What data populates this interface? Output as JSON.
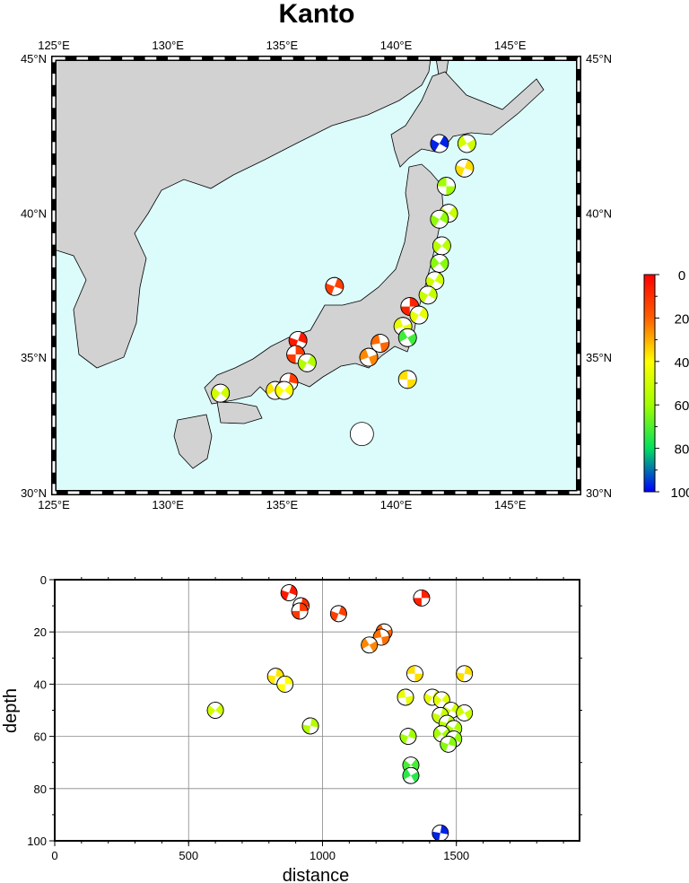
{
  "title": "Kanto",
  "map": {
    "lon_range": [
      125,
      148
    ],
    "lat_range": [
      30,
      45
    ],
    "lon_ticks": [
      {
        "value": 125,
        "label": "125°E"
      },
      {
        "value": 130,
        "label": "130°E"
      },
      {
        "value": 135,
        "label": "135°E"
      },
      {
        "value": 140,
        "label": "140°E"
      },
      {
        "value": 145,
        "label": "145°E"
      }
    ],
    "lat_ticks": [
      {
        "value": 30,
        "label": "30°N"
      },
      {
        "value": 35,
        "label": "35°N"
      },
      {
        "value": 40,
        "label": "40°N"
      },
      {
        "value": 45,
        "label": "45°N"
      }
    ],
    "ocean_color": "#dcfcfc",
    "land_color": "#d2d2d2"
  },
  "colorbar": {
    "range": [
      0,
      100
    ],
    "ticks": [
      {
        "value": 0,
        "label": "0"
      },
      {
        "value": 20,
        "label": "20"
      },
      {
        "value": 40,
        "label": "40"
      },
      {
        "value": 60,
        "label": "60"
      },
      {
        "value": 80,
        "label": "80"
      },
      {
        "value": 100,
        "label": "100"
      }
    ],
    "colors": [
      "#ff0000",
      "#ff6000",
      "#ffff00",
      "#a0ff00",
      "#00e060",
      "#0000ff"
    ]
  },
  "map_events": [
    {
      "lon": 141.9,
      "lat": 42.3,
      "depth": 97,
      "rot": 30
    },
    {
      "lon": 143.1,
      "lat": 42.3,
      "depth": 50,
      "rot": 60
    },
    {
      "lon": 143.0,
      "lat": 41.5,
      "depth": 36,
      "rot": 20
    },
    {
      "lon": 142.2,
      "lat": 40.9,
      "depth": 60,
      "rot": 90
    },
    {
      "lon": 142.3,
      "lat": 40.0,
      "depth": 52,
      "rot": 40
    },
    {
      "lon": 141.9,
      "lat": 39.8,
      "depth": 62,
      "rot": 30
    },
    {
      "lon": 142.0,
      "lat": 38.9,
      "depth": 55,
      "rot": 40
    },
    {
      "lon": 141.9,
      "lat": 38.3,
      "depth": 63,
      "rot": 50
    },
    {
      "lon": 141.7,
      "lat": 37.7,
      "depth": 50,
      "rot": 30
    },
    {
      "lon": 141.4,
      "lat": 37.2,
      "depth": 52,
      "rot": 30
    },
    {
      "lon": 140.6,
      "lat": 36.8,
      "depth": 7,
      "rot": 0
    },
    {
      "lon": 141.0,
      "lat": 36.5,
      "depth": 45,
      "rot": 30
    },
    {
      "lon": 137.3,
      "lat": 37.5,
      "depth": 13,
      "rot": 20
    },
    {
      "lon": 140.3,
      "lat": 36.1,
      "depth": 45,
      "rot": 70
    },
    {
      "lon": 140.5,
      "lat": 35.7,
      "depth": 72,
      "rot": 60
    },
    {
      "lon": 139.3,
      "lat": 35.5,
      "depth": 21,
      "rot": 80
    },
    {
      "lon": 138.8,
      "lat": 35.0,
      "depth": 25,
      "rot": 70
    },
    {
      "lon": 140.5,
      "lat": 34.2,
      "depth": 36,
      "rot": 90
    },
    {
      "lon": 135.7,
      "lat": 35.6,
      "depth": 5,
      "rot": 20
    },
    {
      "lon": 135.6,
      "lat": 35.1,
      "depth": 12,
      "rot": 0
    },
    {
      "lon": 136.1,
      "lat": 34.8,
      "depth": 56,
      "rot": 30
    },
    {
      "lon": 135.3,
      "lat": 34.1,
      "depth": 13,
      "rot": 10
    },
    {
      "lon": 134.7,
      "lat": 33.8,
      "depth": 37,
      "rot": 60
    },
    {
      "lon": 135.1,
      "lat": 33.8,
      "depth": 40,
      "rot": 40
    },
    {
      "lon": 132.3,
      "lat": 33.7,
      "depth": 50,
      "rot": 40
    },
    {
      "lon": 138.5,
      "lat": 32.2,
      "depth": null,
      "rot": 0
    }
  ],
  "section": {
    "xlabel": "distance",
    "ylabel": "depth",
    "xlim": [
      0,
      1960
    ],
    "ylim": [
      0,
      100
    ],
    "x_ticks": [
      0,
      500,
      1000,
      1500
    ],
    "y_ticks": [
      0,
      20,
      40,
      60,
      80,
      100
    ],
    "events": [
      {
        "distance": 875,
        "depth": 5,
        "rot": 20
      },
      {
        "distance": 920,
        "depth": 10,
        "rot": 10
      },
      {
        "distance": 915,
        "depth": 12,
        "rot": 0
      },
      {
        "distance": 1060,
        "depth": 13,
        "rot": 20
      },
      {
        "distance": 1370,
        "depth": 7,
        "rot": 0
      },
      {
        "distance": 1230,
        "depth": 20,
        "rot": 70
      },
      {
        "distance": 1220,
        "depth": 22,
        "rot": 80
      },
      {
        "distance": 1175,
        "depth": 25,
        "rot": 60
      },
      {
        "distance": 825,
        "depth": 37,
        "rot": 10
      },
      {
        "distance": 860,
        "depth": 40,
        "rot": 0
      },
      {
        "distance": 1345,
        "depth": 36,
        "rot": 90
      },
      {
        "distance": 1530,
        "depth": 36,
        "rot": 10
      },
      {
        "distance": 600,
        "depth": 50,
        "rot": 40
      },
      {
        "distance": 955,
        "depth": 56,
        "rot": 10
      },
      {
        "distance": 1310,
        "depth": 45,
        "rot": 80
      },
      {
        "distance": 1410,
        "depth": 45,
        "rot": 30
      },
      {
        "distance": 1445,
        "depth": 46,
        "rot": 40
      },
      {
        "distance": 1480,
        "depth": 50,
        "rot": 30
      },
      {
        "distance": 1530,
        "depth": 51,
        "rot": 60
      },
      {
        "distance": 1440,
        "depth": 52,
        "rot": 20
      },
      {
        "distance": 1465,
        "depth": 55,
        "rot": 20
      },
      {
        "distance": 1490,
        "depth": 57,
        "rot": 30
      },
      {
        "distance": 1445,
        "depth": 59,
        "rot": 50
      },
      {
        "distance": 1490,
        "depth": 61,
        "rot": 30
      },
      {
        "distance": 1320,
        "depth": 60,
        "rot": 20
      },
      {
        "distance": 1470,
        "depth": 63,
        "rot": 20
      },
      {
        "distance": 1330,
        "depth": 71,
        "rot": 40
      },
      {
        "distance": 1330,
        "depth": 75,
        "rot": 60
      },
      {
        "distance": 1440,
        "depth": 97,
        "rot": 10
      }
    ]
  }
}
